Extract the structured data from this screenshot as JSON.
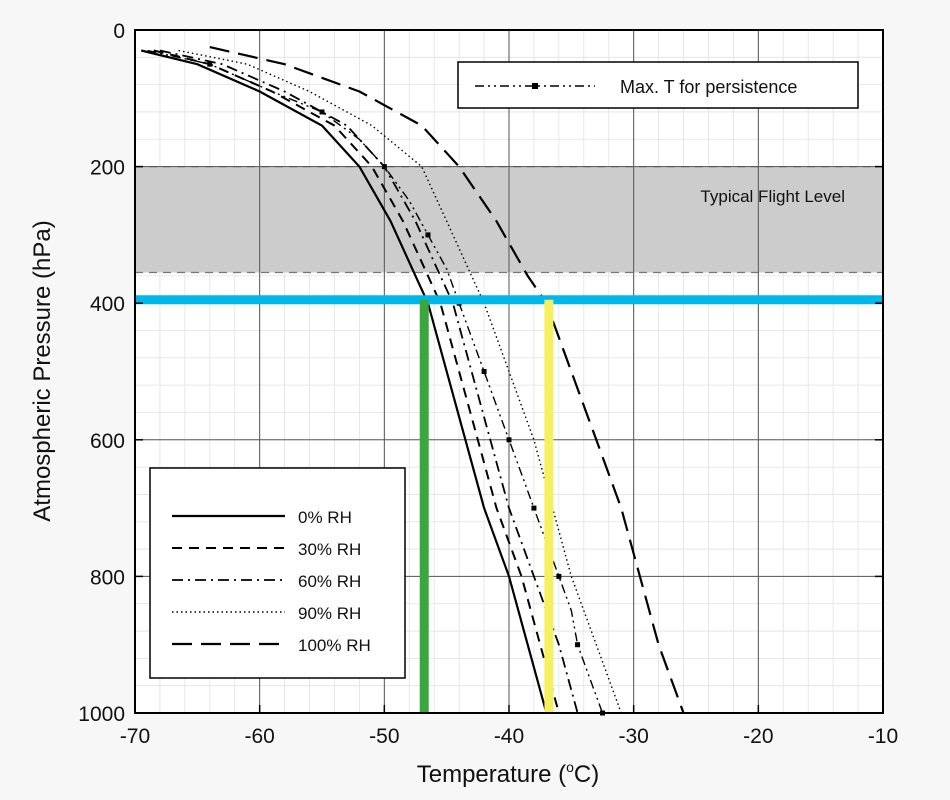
{
  "chart_data": {
    "type": "line",
    "xlabel": "Temperature (°C)",
    "xlabel_base": "Temperature (",
    "xlabel_deg": "o",
    "xlabel_unit": "C)",
    "ylabel": "Atmospheric Pressure (hPa)",
    "xlim": [
      -70,
      -10
    ],
    "ylim": [
      0,
      1000
    ],
    "y_inverted": true,
    "grid": true,
    "x_ticks": [
      -70,
      -60,
      -50,
      -40,
      -30,
      -20,
      -10
    ],
    "x_tick_labels": [
      "-70",
      "-60",
      "-50",
      "-40",
      "-30",
      "-20",
      "-10"
    ],
    "y_ticks": [
      0,
      200,
      400,
      600,
      800,
      1000
    ],
    "y_tick_labels": [
      "0",
      "200",
      "400",
      "600",
      "800",
      "1000"
    ],
    "band": {
      "label": "Typical Flight Level",
      "y_from": 200,
      "y_to": 355,
      "color": "#cccccc"
    },
    "reference_lines": [
      {
        "axis": "y",
        "value": 395,
        "color": "#00b7eb"
      },
      {
        "axis": "x",
        "value": -46.8,
        "color": "#3aa63f"
      },
      {
        "axis": "x",
        "value": -36.8,
        "color": "#f5f060"
      }
    ],
    "series": [
      {
        "name": "0% RH",
        "style": "solid",
        "points": [
          [
            -69.5,
            30
          ],
          [
            -65,
            50
          ],
          [
            -60,
            90
          ],
          [
            -55,
            140
          ],
          [
            -52,
            200
          ],
          [
            -49.5,
            280
          ],
          [
            -47.5,
            360
          ],
          [
            -46.5,
            400
          ],
          [
            -45,
            500
          ],
          [
            -43.5,
            600
          ],
          [
            -42,
            700
          ],
          [
            -40,
            800
          ],
          [
            -38.5,
            900
          ],
          [
            -37,
            1000
          ]
        ]
      },
      {
        "name": "30% RH",
        "style": "dash",
        "points": [
          [
            -68.5,
            30
          ],
          [
            -64,
            50
          ],
          [
            -59,
            90
          ],
          [
            -54,
            140
          ],
          [
            -51,
            200
          ],
          [
            -48.5,
            280
          ],
          [
            -46.5,
            360
          ],
          [
            -45.5,
            400
          ],
          [
            -44,
            500
          ],
          [
            -42.5,
            600
          ],
          [
            -41,
            700
          ],
          [
            -39,
            800
          ],
          [
            -37.5,
            900
          ],
          [
            -36,
            1000
          ]
        ]
      },
      {
        "name": "60% RH",
        "style": "dashdot",
        "points": [
          [
            -68,
            30
          ],
          [
            -63,
            50
          ],
          [
            -58,
            90
          ],
          [
            -53,
            140
          ],
          [
            -50,
            200
          ],
          [
            -47.5,
            280
          ],
          [
            -45.5,
            360
          ],
          [
            -44.5,
            400
          ],
          [
            -43,
            500
          ],
          [
            -41.5,
            600
          ],
          [
            -40,
            700
          ],
          [
            -38,
            800
          ],
          [
            -36,
            900
          ],
          [
            -34.5,
            1000
          ]
        ]
      },
      {
        "name": "90% RH",
        "style": "dotted",
        "points": [
          [
            -66.5,
            30
          ],
          [
            -61,
            50
          ],
          [
            -56,
            90
          ],
          [
            -51,
            140
          ],
          [
            -47,
            200
          ],
          [
            -45,
            280
          ],
          [
            -43,
            360
          ],
          [
            -42,
            400
          ],
          [
            -40,
            500
          ],
          [
            -38,
            600
          ],
          [
            -36.5,
            700
          ],
          [
            -35,
            800
          ],
          [
            -33,
            900
          ],
          [
            -31,
            1000
          ]
        ]
      },
      {
        "name": "100% RH",
        "style": "longdash",
        "points": [
          [
            -64,
            25
          ],
          [
            -58,
            50
          ],
          [
            -52,
            90
          ],
          [
            -47,
            140
          ],
          [
            -44,
            200
          ],
          [
            -41,
            280
          ],
          [
            -38.5,
            360
          ],
          [
            -37,
            400
          ],
          [
            -35,
            500
          ],
          [
            -33,
            600
          ],
          [
            -31,
            700
          ],
          [
            -29.5,
            800
          ],
          [
            -28,
            900
          ],
          [
            -26,
            1000
          ]
        ]
      },
      {
        "name": "Max. T for persistence",
        "style": "dotdotdash",
        "markers": true,
        "points": [
          [
            -69,
            30
          ],
          [
            -64,
            50
          ],
          [
            -59,
            90
          ],
          [
            -55,
            120
          ],
          [
            -52,
            160
          ],
          [
            -50,
            200
          ],
          [
            -48,
            250
          ],
          [
            -46.5,
            300
          ],
          [
            -45,
            350
          ],
          [
            -44,
            400
          ],
          [
            -43,
            450
          ],
          [
            -42,
            500
          ],
          [
            -41,
            550
          ],
          [
            -40,
            600
          ],
          [
            -39,
            650
          ],
          [
            -38,
            700
          ],
          [
            -37,
            750
          ],
          [
            -36,
            800
          ],
          [
            -35,
            850
          ],
          [
            -34.5,
            900
          ],
          [
            -33.5,
            950
          ],
          [
            -32.5,
            1000
          ]
        ]
      }
    ],
    "legend_main": {
      "placement": "lower-left",
      "entries": [
        "0% RH",
        "30% RH",
        "60% RH",
        "90% RH",
        "100% RH"
      ]
    },
    "legend_secondary": {
      "placement": "top-right",
      "entries": [
        "Max. T for persistence"
      ]
    }
  }
}
